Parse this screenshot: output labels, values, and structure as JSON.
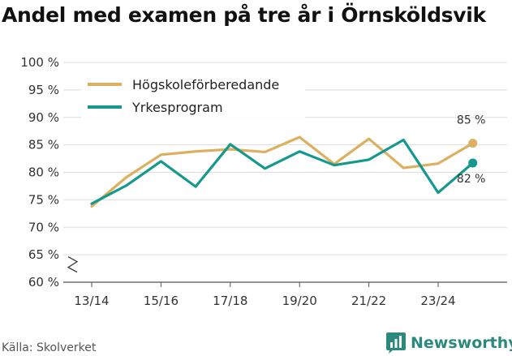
{
  "chart_data": {
    "type": "line",
    "title": "Andel med examen på tre år i Örnsköldsvik",
    "x": [
      "13/14",
      "14/15",
      "15/16",
      "16/17",
      "17/18",
      "18/19",
      "19/20",
      "20/21",
      "21/22",
      "22/23",
      "23/24",
      "24/25"
    ],
    "tick_labels": [
      "13/14",
      "15/16",
      "17/18",
      "19/20",
      "21/22",
      "23/24"
    ],
    "y_ticks": [
      "100 %",
      "95 %",
      "90 %",
      "85 %",
      "80 %",
      "75 %",
      "70 %",
      "65 %",
      "60 %"
    ],
    "ylim": [
      60,
      100
    ],
    "y_axis_break": true,
    "grid": true,
    "legend_position": "top-left",
    "series": [
      {
        "name": "Högskoleförberedande",
        "color": "#dcaf61",
        "values": [
          73.8,
          79.1,
          83.2,
          83.8,
          84.2,
          83.7,
          86.4,
          81.5,
          86.1,
          80.8,
          81.6,
          85.3
        ],
        "end_label": "85 %"
      },
      {
        "name": "Yrkesprogram",
        "color": "#15998e",
        "values": [
          74.3,
          77.6,
          82.0,
          77.4,
          85.1,
          80.7,
          83.8,
          81.3,
          82.3,
          85.9,
          76.3,
          81.7
        ],
        "end_label": "82 %"
      }
    ]
  },
  "footer": {
    "source": "Källa: Skolverket",
    "brand": "Newsworthy",
    "logo_icon": "bar-chart-logo-icon"
  }
}
